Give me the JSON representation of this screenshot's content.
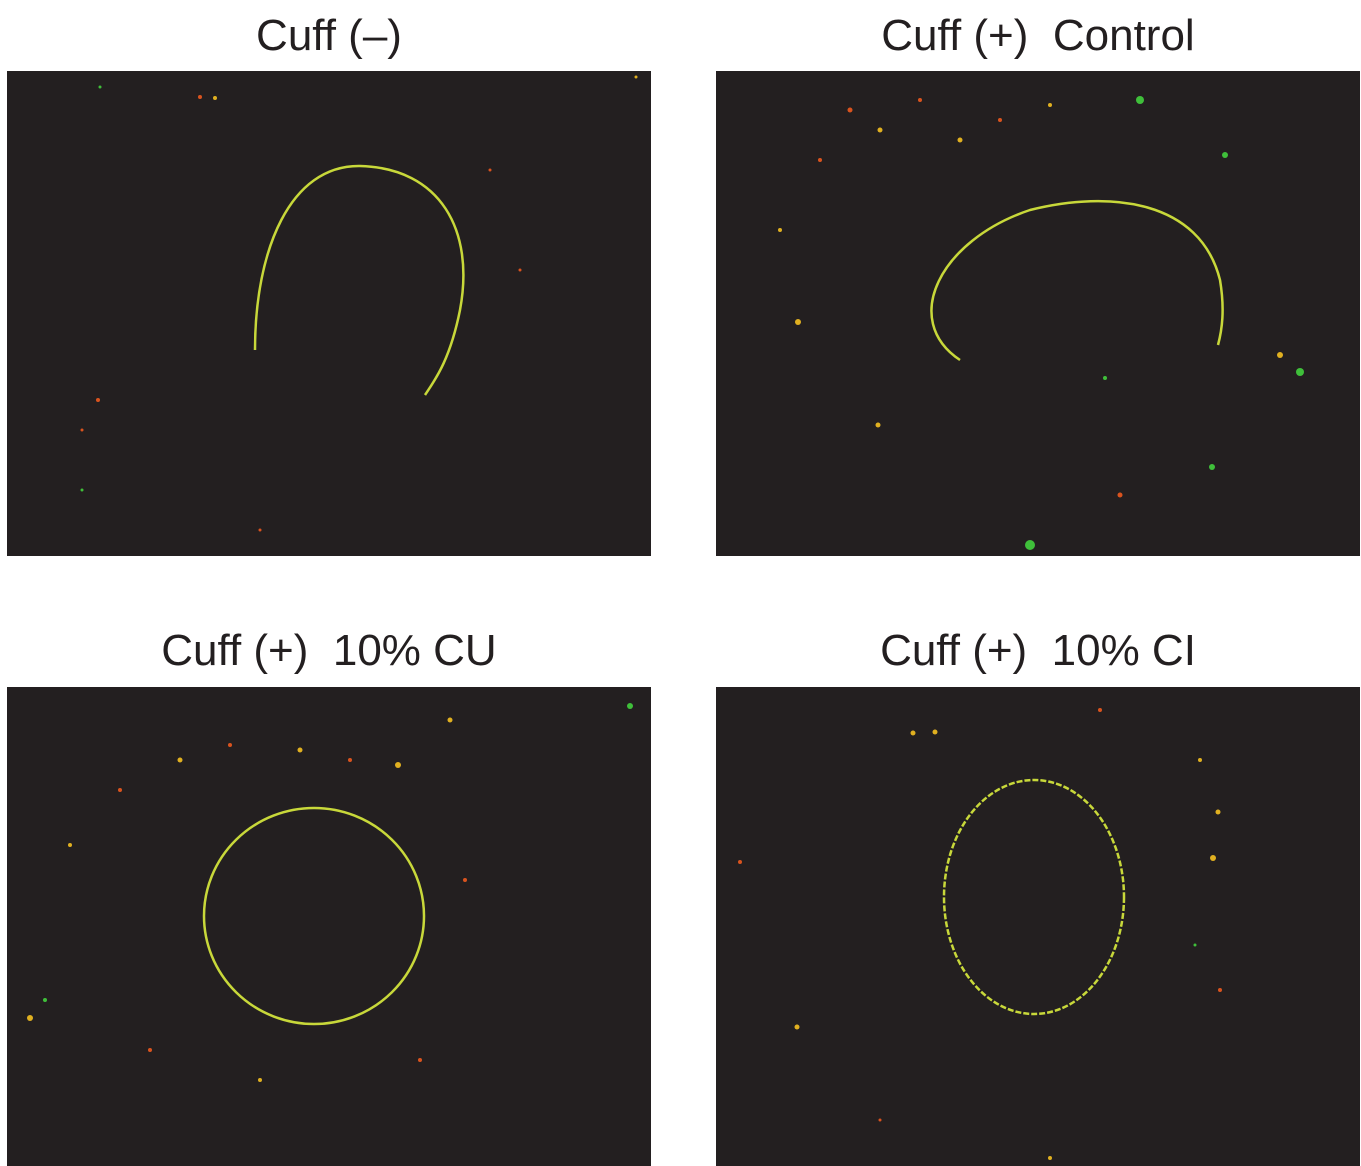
{
  "panels": [
    {
      "title": "Cuff (–)"
    },
    {
      "title": "Cuff (+)  Control"
    },
    {
      "title": "Cuff (+)  10% CU"
    },
    {
      "title": "Cuff (+)  10% CI"
    }
  ]
}
